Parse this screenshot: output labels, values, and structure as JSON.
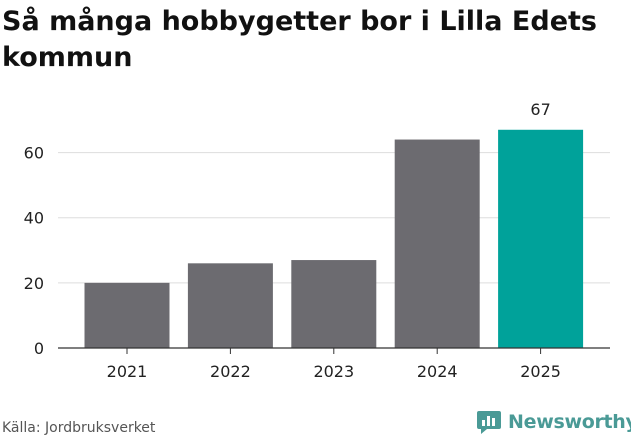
{
  "title": "Så många hobbygetter bor i Lilla Edets kommun",
  "source": "Källa: Jordbruksverket",
  "logo_text": "Newsworthy",
  "colors": {
    "bar_default": "#6c6b70",
    "bar_highlight": "#00a29a",
    "grid": "#dddddd",
    "axis": "#333333",
    "logo": "#4a9a96"
  },
  "chart_data": {
    "type": "bar",
    "categories": [
      "2021",
      "2022",
      "2023",
      "2024",
      "2025"
    ],
    "values": [
      20,
      26,
      27,
      64,
      67
    ],
    "highlight_index": 4,
    "data_labels": [
      {
        "index": 4,
        "text": "67"
      }
    ],
    "yticks": [
      0,
      20,
      40,
      60
    ],
    "ylim": [
      0,
      70
    ],
    "grid": true,
    "title": "Så många hobbygetter bor i Lilla Edets kommun",
    "xlabel": "",
    "ylabel": ""
  }
}
